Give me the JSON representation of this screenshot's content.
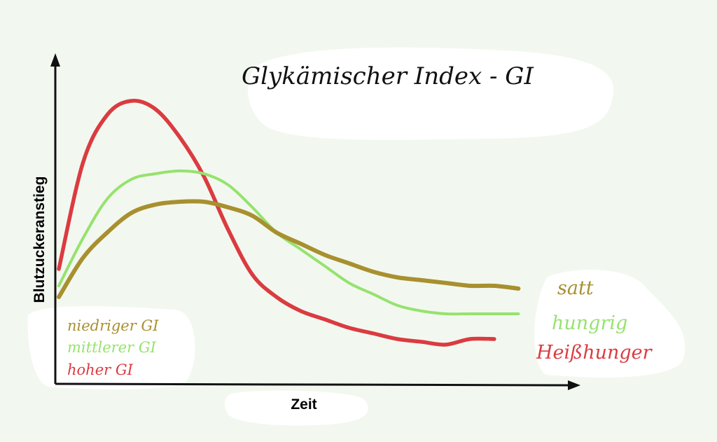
{
  "chart_data": {
    "type": "line",
    "title": "Glykämischer Index - GI",
    "xlabel": "Zeit",
    "ylabel": "Blutzuckeranstieg",
    "x_ticks": "none",
    "y_ticks": "none",
    "grid": false,
    "legend_position": "bottom-left",
    "xlim": [
      0,
      100
    ],
    "ylim": [
      0,
      100
    ],
    "series": [
      {
        "name": "niedriger GI",
        "color": "#a8902f",
        "end_label": "satt",
        "x": [
          0,
          5,
          10,
          15,
          20,
          25,
          30,
          35,
          40,
          45,
          50,
          55,
          60,
          65,
          70,
          75,
          80,
          85,
          90,
          95
        ],
        "y": [
          24,
          38,
          47,
          54,
          57,
          58,
          58,
          56,
          53,
          47,
          43,
          39,
          36,
          33,
          31,
          30,
          29,
          28,
          28,
          27
        ]
      },
      {
        "name": "mittlerer GI",
        "color": "#96e26e",
        "end_label": "hungrig",
        "x": [
          0,
          5,
          10,
          15,
          20,
          25,
          30,
          35,
          40,
          45,
          50,
          55,
          60,
          65,
          70,
          75,
          80,
          85,
          90,
          95
        ],
        "y": [
          28,
          45,
          59,
          66,
          68,
          69,
          68,
          64,
          56,
          47,
          41,
          35,
          29,
          25,
          21,
          19,
          18,
          18,
          18,
          18
        ]
      },
      {
        "name": "hoher GI",
        "color": "#db3b40",
        "end_label": "Heißhunger",
        "x": [
          0,
          5,
          10,
          15,
          20,
          25,
          30,
          35,
          40,
          45,
          50,
          55,
          60,
          65,
          70,
          75,
          80,
          85,
          90
        ],
        "y": [
          34,
          72,
          89,
          94,
          91,
          81,
          67,
          48,
          32,
          24,
          19,
          16,
          13,
          11,
          9,
          8,
          7,
          9,
          9
        ]
      }
    ]
  }
}
